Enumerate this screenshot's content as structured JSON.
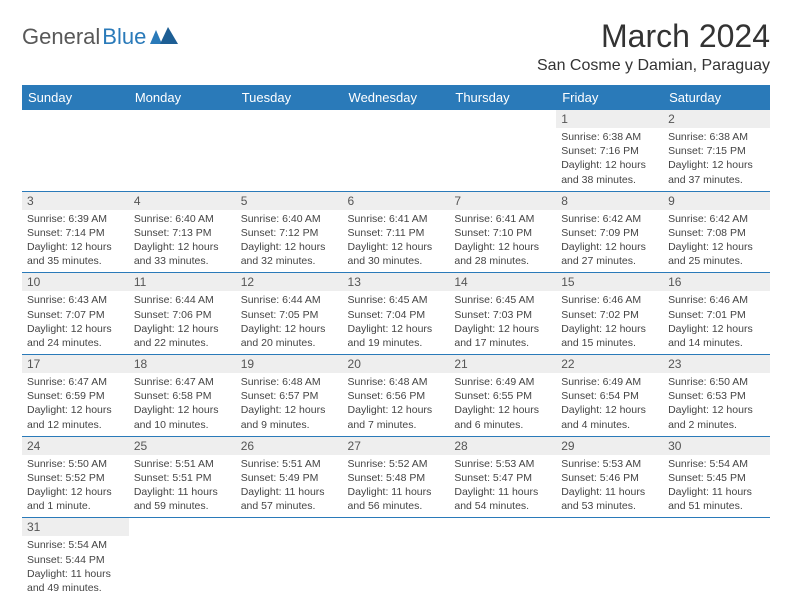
{
  "brand": {
    "part1": "General",
    "part2": "Blue"
  },
  "title": "March 2024",
  "location": "San Cosme y Damian, Paraguay",
  "colors": {
    "accent": "#2a7ab9",
    "header_text": "#ffffff",
    "daybar": "#eeeeee",
    "text": "#444444"
  },
  "weekdays": [
    "Sunday",
    "Monday",
    "Tuesday",
    "Wednesday",
    "Thursday",
    "Friday",
    "Saturday"
  ],
  "weeks": [
    [
      null,
      null,
      null,
      null,
      null,
      {
        "n": "1",
        "sr": "6:38 AM",
        "ss": "7:16 PM",
        "dl": "12 hours and 38 minutes."
      },
      {
        "n": "2",
        "sr": "6:38 AM",
        "ss": "7:15 PM",
        "dl": "12 hours and 37 minutes."
      }
    ],
    [
      {
        "n": "3",
        "sr": "6:39 AM",
        "ss": "7:14 PM",
        "dl": "12 hours and 35 minutes."
      },
      {
        "n": "4",
        "sr": "6:40 AM",
        "ss": "7:13 PM",
        "dl": "12 hours and 33 minutes."
      },
      {
        "n": "5",
        "sr": "6:40 AM",
        "ss": "7:12 PM",
        "dl": "12 hours and 32 minutes."
      },
      {
        "n": "6",
        "sr": "6:41 AM",
        "ss": "7:11 PM",
        "dl": "12 hours and 30 minutes."
      },
      {
        "n": "7",
        "sr": "6:41 AM",
        "ss": "7:10 PM",
        "dl": "12 hours and 28 minutes."
      },
      {
        "n": "8",
        "sr": "6:42 AM",
        "ss": "7:09 PM",
        "dl": "12 hours and 27 minutes."
      },
      {
        "n": "9",
        "sr": "6:42 AM",
        "ss": "7:08 PM",
        "dl": "12 hours and 25 minutes."
      }
    ],
    [
      {
        "n": "10",
        "sr": "6:43 AM",
        "ss": "7:07 PM",
        "dl": "12 hours and 24 minutes."
      },
      {
        "n": "11",
        "sr": "6:44 AM",
        "ss": "7:06 PM",
        "dl": "12 hours and 22 minutes."
      },
      {
        "n": "12",
        "sr": "6:44 AM",
        "ss": "7:05 PM",
        "dl": "12 hours and 20 minutes."
      },
      {
        "n": "13",
        "sr": "6:45 AM",
        "ss": "7:04 PM",
        "dl": "12 hours and 19 minutes."
      },
      {
        "n": "14",
        "sr": "6:45 AM",
        "ss": "7:03 PM",
        "dl": "12 hours and 17 minutes."
      },
      {
        "n": "15",
        "sr": "6:46 AM",
        "ss": "7:02 PM",
        "dl": "12 hours and 15 minutes."
      },
      {
        "n": "16",
        "sr": "6:46 AM",
        "ss": "7:01 PM",
        "dl": "12 hours and 14 minutes."
      }
    ],
    [
      {
        "n": "17",
        "sr": "6:47 AM",
        "ss": "6:59 PM",
        "dl": "12 hours and 12 minutes."
      },
      {
        "n": "18",
        "sr": "6:47 AM",
        "ss": "6:58 PM",
        "dl": "12 hours and 10 minutes."
      },
      {
        "n": "19",
        "sr": "6:48 AM",
        "ss": "6:57 PM",
        "dl": "12 hours and 9 minutes."
      },
      {
        "n": "20",
        "sr": "6:48 AM",
        "ss": "6:56 PM",
        "dl": "12 hours and 7 minutes."
      },
      {
        "n": "21",
        "sr": "6:49 AM",
        "ss": "6:55 PM",
        "dl": "12 hours and 6 minutes."
      },
      {
        "n": "22",
        "sr": "6:49 AM",
        "ss": "6:54 PM",
        "dl": "12 hours and 4 minutes."
      },
      {
        "n": "23",
        "sr": "6:50 AM",
        "ss": "6:53 PM",
        "dl": "12 hours and 2 minutes."
      }
    ],
    [
      {
        "n": "24",
        "sr": "5:50 AM",
        "ss": "5:52 PM",
        "dl": "12 hours and 1 minute."
      },
      {
        "n": "25",
        "sr": "5:51 AM",
        "ss": "5:51 PM",
        "dl": "11 hours and 59 minutes."
      },
      {
        "n": "26",
        "sr": "5:51 AM",
        "ss": "5:49 PM",
        "dl": "11 hours and 57 minutes."
      },
      {
        "n": "27",
        "sr": "5:52 AM",
        "ss": "5:48 PM",
        "dl": "11 hours and 56 minutes."
      },
      {
        "n": "28",
        "sr": "5:53 AM",
        "ss": "5:47 PM",
        "dl": "11 hours and 54 minutes."
      },
      {
        "n": "29",
        "sr": "5:53 AM",
        "ss": "5:46 PM",
        "dl": "11 hours and 53 minutes."
      },
      {
        "n": "30",
        "sr": "5:54 AM",
        "ss": "5:45 PM",
        "dl": "11 hours and 51 minutes."
      }
    ],
    [
      {
        "n": "31",
        "sr": "5:54 AM",
        "ss": "5:44 PM",
        "dl": "11 hours and 49 minutes."
      },
      null,
      null,
      null,
      null,
      null,
      null
    ]
  ],
  "labels": {
    "sunrise": "Sunrise:",
    "sunset": "Sunset:",
    "daylight": "Daylight:"
  }
}
